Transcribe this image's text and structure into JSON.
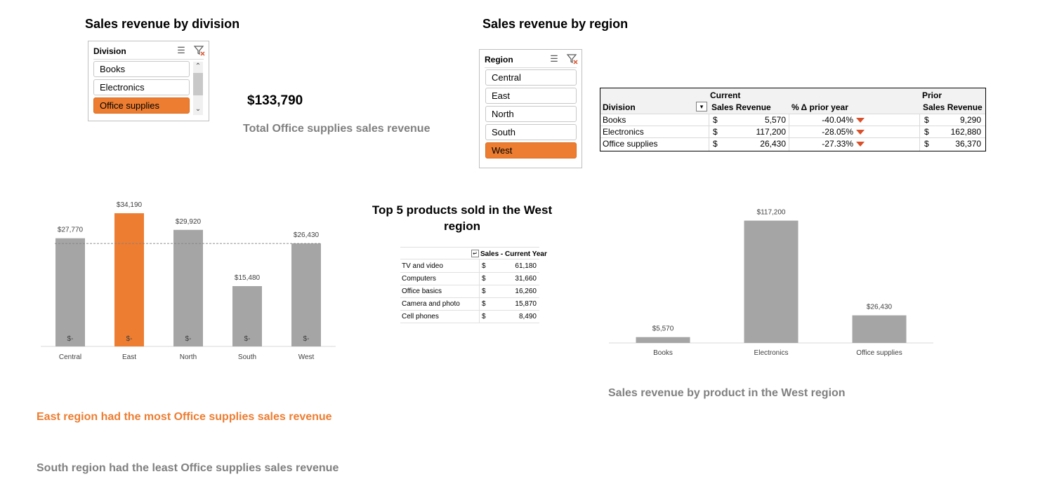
{
  "titles": {
    "by_division": "Sales revenue by division",
    "by_region": "Sales revenue by region",
    "top5": "Top 5 products sold in the West region",
    "by_product": "Sales revenue by product in the West region"
  },
  "kpi": {
    "value": "$133,790",
    "label": "Total Office supplies sales revenue"
  },
  "insights": {
    "most": "East region had the most Office supplies sales revenue",
    "least": "South region had the least Office supplies sales revenue"
  },
  "division_slicer": {
    "title": "Division",
    "items": [
      {
        "label": "Books",
        "selected": false
      },
      {
        "label": "Electronics",
        "selected": false
      },
      {
        "label": "Office supplies",
        "selected": true
      }
    ],
    "icons": [
      "multi-select-icon",
      "clear-filter-icon"
    ]
  },
  "region_slicer": {
    "title": "Region",
    "items": [
      {
        "label": "Central",
        "selected": false
      },
      {
        "label": "East",
        "selected": false
      },
      {
        "label": "North",
        "selected": false
      },
      {
        "label": "South",
        "selected": false
      },
      {
        "label": "West",
        "selected": true
      }
    ],
    "icons": [
      "multi-select-icon",
      "clear-filter-icon"
    ]
  },
  "region_table": {
    "group_current": "Current",
    "group_prior": "Prior",
    "headers": [
      "Division",
      "Sales Revenue",
      "% Δ prior year",
      "Sales Revenue"
    ],
    "rows": [
      {
        "division": "Books",
        "cur_sym": "$",
        "cur": "5,570",
        "pct": "-40.04%",
        "pri_sym": "$",
        "pri": "9,290"
      },
      {
        "division": "Electronics",
        "cur_sym": "$",
        "cur": "117,200",
        "pct": "-28.05%",
        "pri_sym": "$",
        "pri": "162,880"
      },
      {
        "division": "Office supplies",
        "cur_sym": "$",
        "cur": "26,430",
        "pct": "-27.33%",
        "pri_sym": "$",
        "pri": "36,370"
      }
    ],
    "down_color": "#d9502a"
  },
  "top5_table": {
    "header": "Sales - Current Year",
    "rows": [
      {
        "product": "TV and video",
        "sym": "$",
        "value": "61,180"
      },
      {
        "product": "Computers",
        "sym": "$",
        "value": "31,660"
      },
      {
        "product": "Office basics",
        "sym": "$",
        "value": "16,260"
      },
      {
        "product": "Camera and photo",
        "sym": "$",
        "value": "15,870"
      },
      {
        "product": "Cell phones",
        "sym": "$",
        "value": "8,490"
      }
    ]
  },
  "colors": {
    "bar": "#a5a5a5",
    "highlight": "#ed7d31",
    "grey_text": "#808080"
  },
  "chart_data": [
    {
      "type": "bar",
      "categories": [
        "Central",
        "East",
        "North",
        "South",
        "West"
      ],
      "values": [
        27770,
        34190,
        29920,
        15480,
        26430
      ],
      "data_labels": [
        "$27,770",
        "$34,190",
        "$29,920",
        "$15,480",
        "$26,430"
      ],
      "base_labels": [
        "$-",
        "$-",
        "$-",
        "$-",
        "$-"
      ],
      "highlight_index": 1,
      "reference_line": 26430,
      "ylim": [
        0,
        36000
      ],
      "grid": false
    },
    {
      "type": "bar",
      "categories": [
        "Books",
        "Electronics",
        "Office supplies"
      ],
      "values": [
        5570,
        117200,
        26430
      ],
      "data_labels": [
        "$5,570",
        "$117,200",
        "$26,430"
      ],
      "ylim": [
        0,
        125000
      ],
      "grid": false
    }
  ]
}
